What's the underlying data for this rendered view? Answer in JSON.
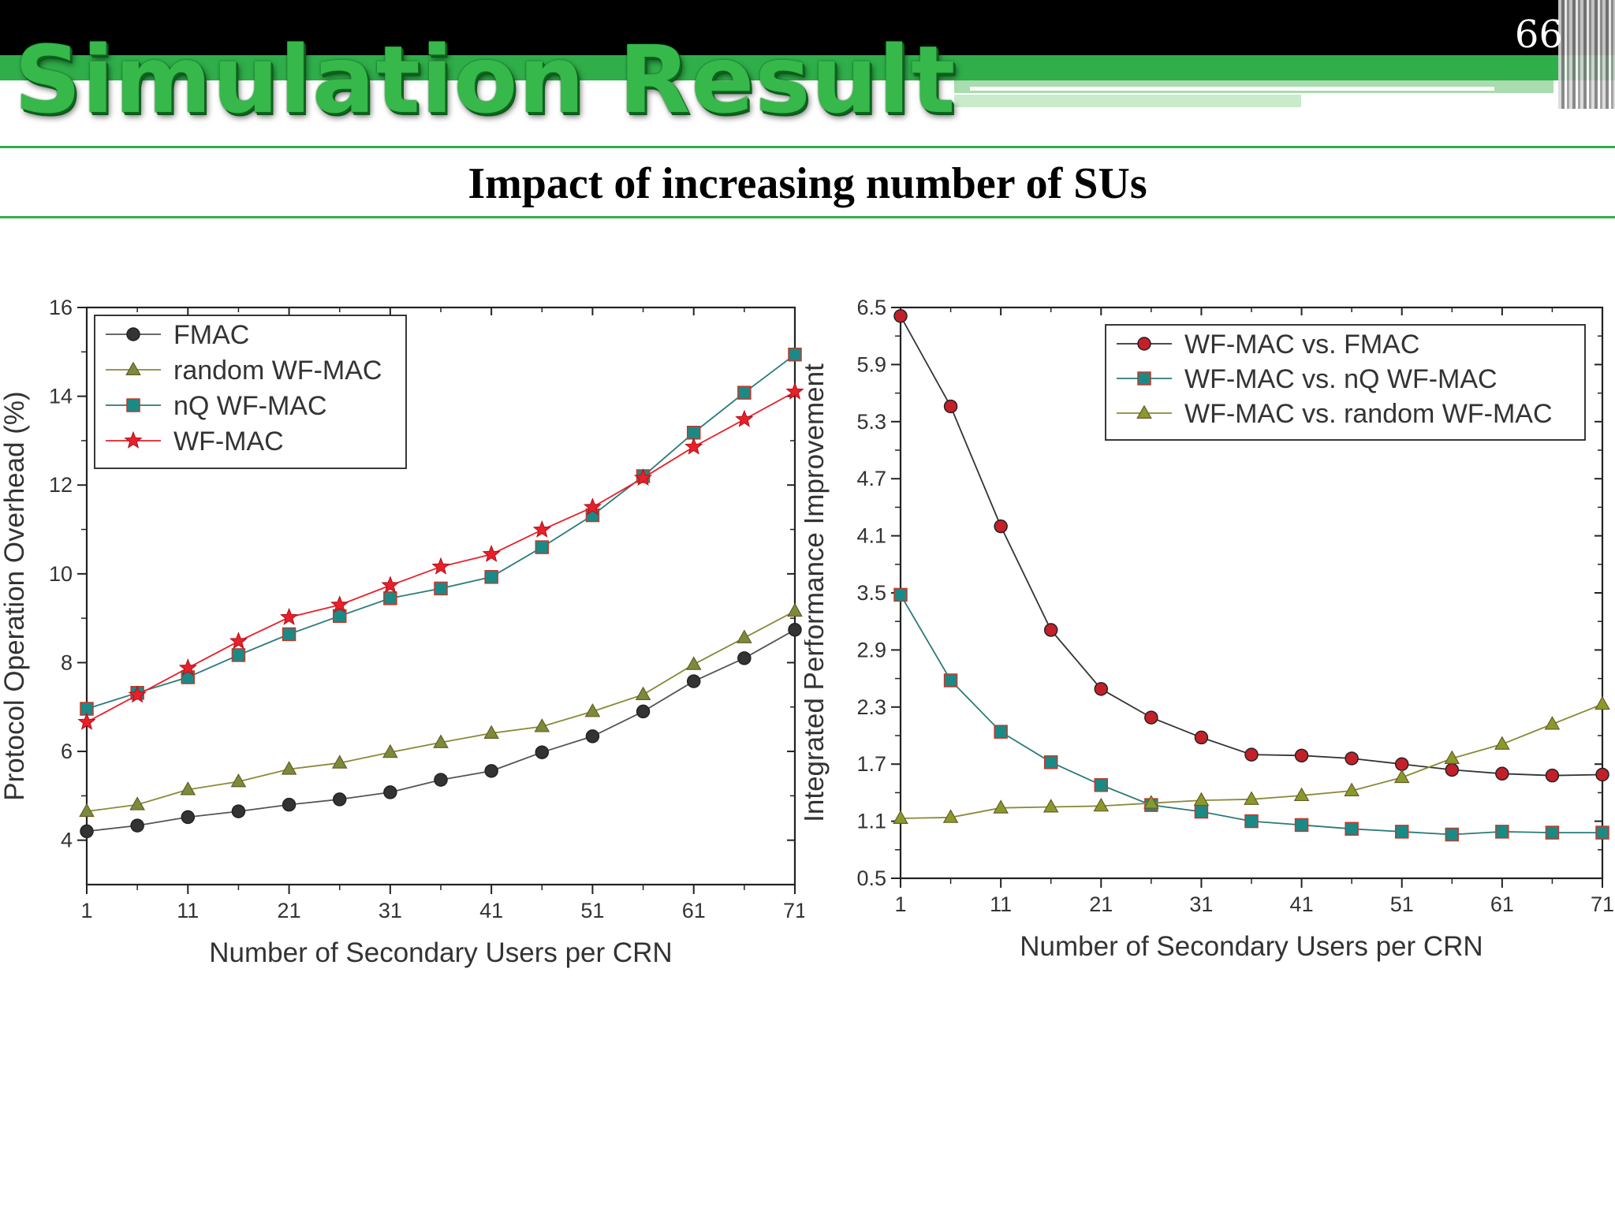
{
  "slide": {
    "title": "Simulation Result",
    "number": "66",
    "subtitle": "Impact of increasing number of SUs"
  },
  "chart_data": [
    {
      "type": "line",
      "xlabel": "Number of Secondary Users per CRN",
      "ylabel": "Protocol Operation Overhead (%)",
      "xlim": [
        1,
        71
      ],
      "ylim": [
        3,
        16
      ],
      "xticks": [
        1,
        11,
        21,
        31,
        41,
        51,
        61,
        71
      ],
      "yticks": [
        4,
        6,
        8,
        10,
        12,
        14,
        16
      ],
      "legend_position": "top-left",
      "x": [
        1,
        6,
        11,
        16,
        21,
        26,
        31,
        36,
        41,
        46,
        51,
        56,
        61,
        66,
        71
      ],
      "series": [
        {
          "name": "FMAC",
          "marker": "circle",
          "line_color": "#555555",
          "marker_color": "#333333",
          "values": [
            4.2,
            4.33,
            4.52,
            4.65,
            4.8,
            4.92,
            5.08,
            5.36,
            5.56,
            5.98,
            6.34,
            6.9,
            7.58,
            8.1,
            8.74
          ]
        },
        {
          "name": "random WF-MAC",
          "marker": "triangle",
          "line_color": "#8a8a3a",
          "marker_color": "#7a8c3a",
          "values": [
            4.65,
            4.8,
            5.14,
            5.32,
            5.6,
            5.74,
            5.98,
            6.2,
            6.41,
            6.56,
            6.9,
            7.28,
            7.96,
            8.56,
            9.16
          ]
        },
        {
          "name": "nQ WF-MAC",
          "marker": "square",
          "line_color": "#2a7a7a",
          "marker_color": "#1a8a86",
          "values": [
            6.96,
            7.32,
            7.67,
            8.17,
            8.64,
            9.05,
            9.45,
            9.67,
            9.93,
            10.6,
            11.32,
            12.2,
            13.18,
            14.08,
            14.94
          ]
        },
        {
          "name": "WF-MAC",
          "marker": "star",
          "line_color": "#e8202a",
          "marker_color": "#e8202a",
          "values": [
            6.66,
            7.27,
            7.88,
            8.48,
            9.02,
            9.3,
            9.74,
            10.16,
            10.44,
            10.99,
            11.5,
            12.16,
            12.86,
            13.48,
            14.1
          ]
        }
      ]
    },
    {
      "type": "line",
      "xlabel": "Number of Secondary Users per CRN",
      "ylabel": "Integrated Performance Improvement",
      "xlim": [
        1,
        71
      ],
      "ylim": [
        0.5,
        6.5
      ],
      "xticks": [
        1,
        11,
        21,
        31,
        41,
        51,
        61,
        71
      ],
      "yticks": [
        0.5,
        1.1,
        1.7,
        2.3,
        2.9,
        3.5,
        4.1,
        4.7,
        5.3,
        5.9,
        6.5
      ],
      "legend_position": "top-right",
      "x": [
        1,
        6,
        11,
        16,
        21,
        26,
        31,
        36,
        41,
        46,
        51,
        56,
        61,
        66,
        71
      ],
      "series": [
        {
          "name": "WF-MAC vs. FMAC",
          "marker": "circle",
          "line_color": "#333333",
          "marker_color": "#c4202a",
          "values": [
            6.41,
            5.46,
            4.2,
            3.11,
            2.49,
            2.19,
            1.98,
            1.8,
            1.79,
            1.76,
            1.7,
            1.64,
            1.6,
            1.58,
            1.59
          ]
        },
        {
          "name": "WF-MAC vs. nQ WF-MAC",
          "marker": "square",
          "line_color": "#2a7a7a",
          "marker_color": "#1a8a86",
          "values": [
            3.48,
            2.58,
            2.04,
            1.72,
            1.48,
            1.27,
            1.2,
            1.1,
            1.06,
            1.02,
            0.99,
            0.96,
            0.99,
            0.98,
            0.98
          ]
        },
        {
          "name": "WF-MAC vs. random WF-MAC",
          "marker": "triangle",
          "line_color": "#8a8a3a",
          "marker_color": "#8a9a2a",
          "values": [
            1.13,
            1.14,
            1.24,
            1.25,
            1.26,
            1.29,
            1.32,
            1.33,
            1.37,
            1.42,
            1.56,
            1.76,
            1.91,
            2.12,
            2.33
          ]
        }
      ]
    }
  ]
}
